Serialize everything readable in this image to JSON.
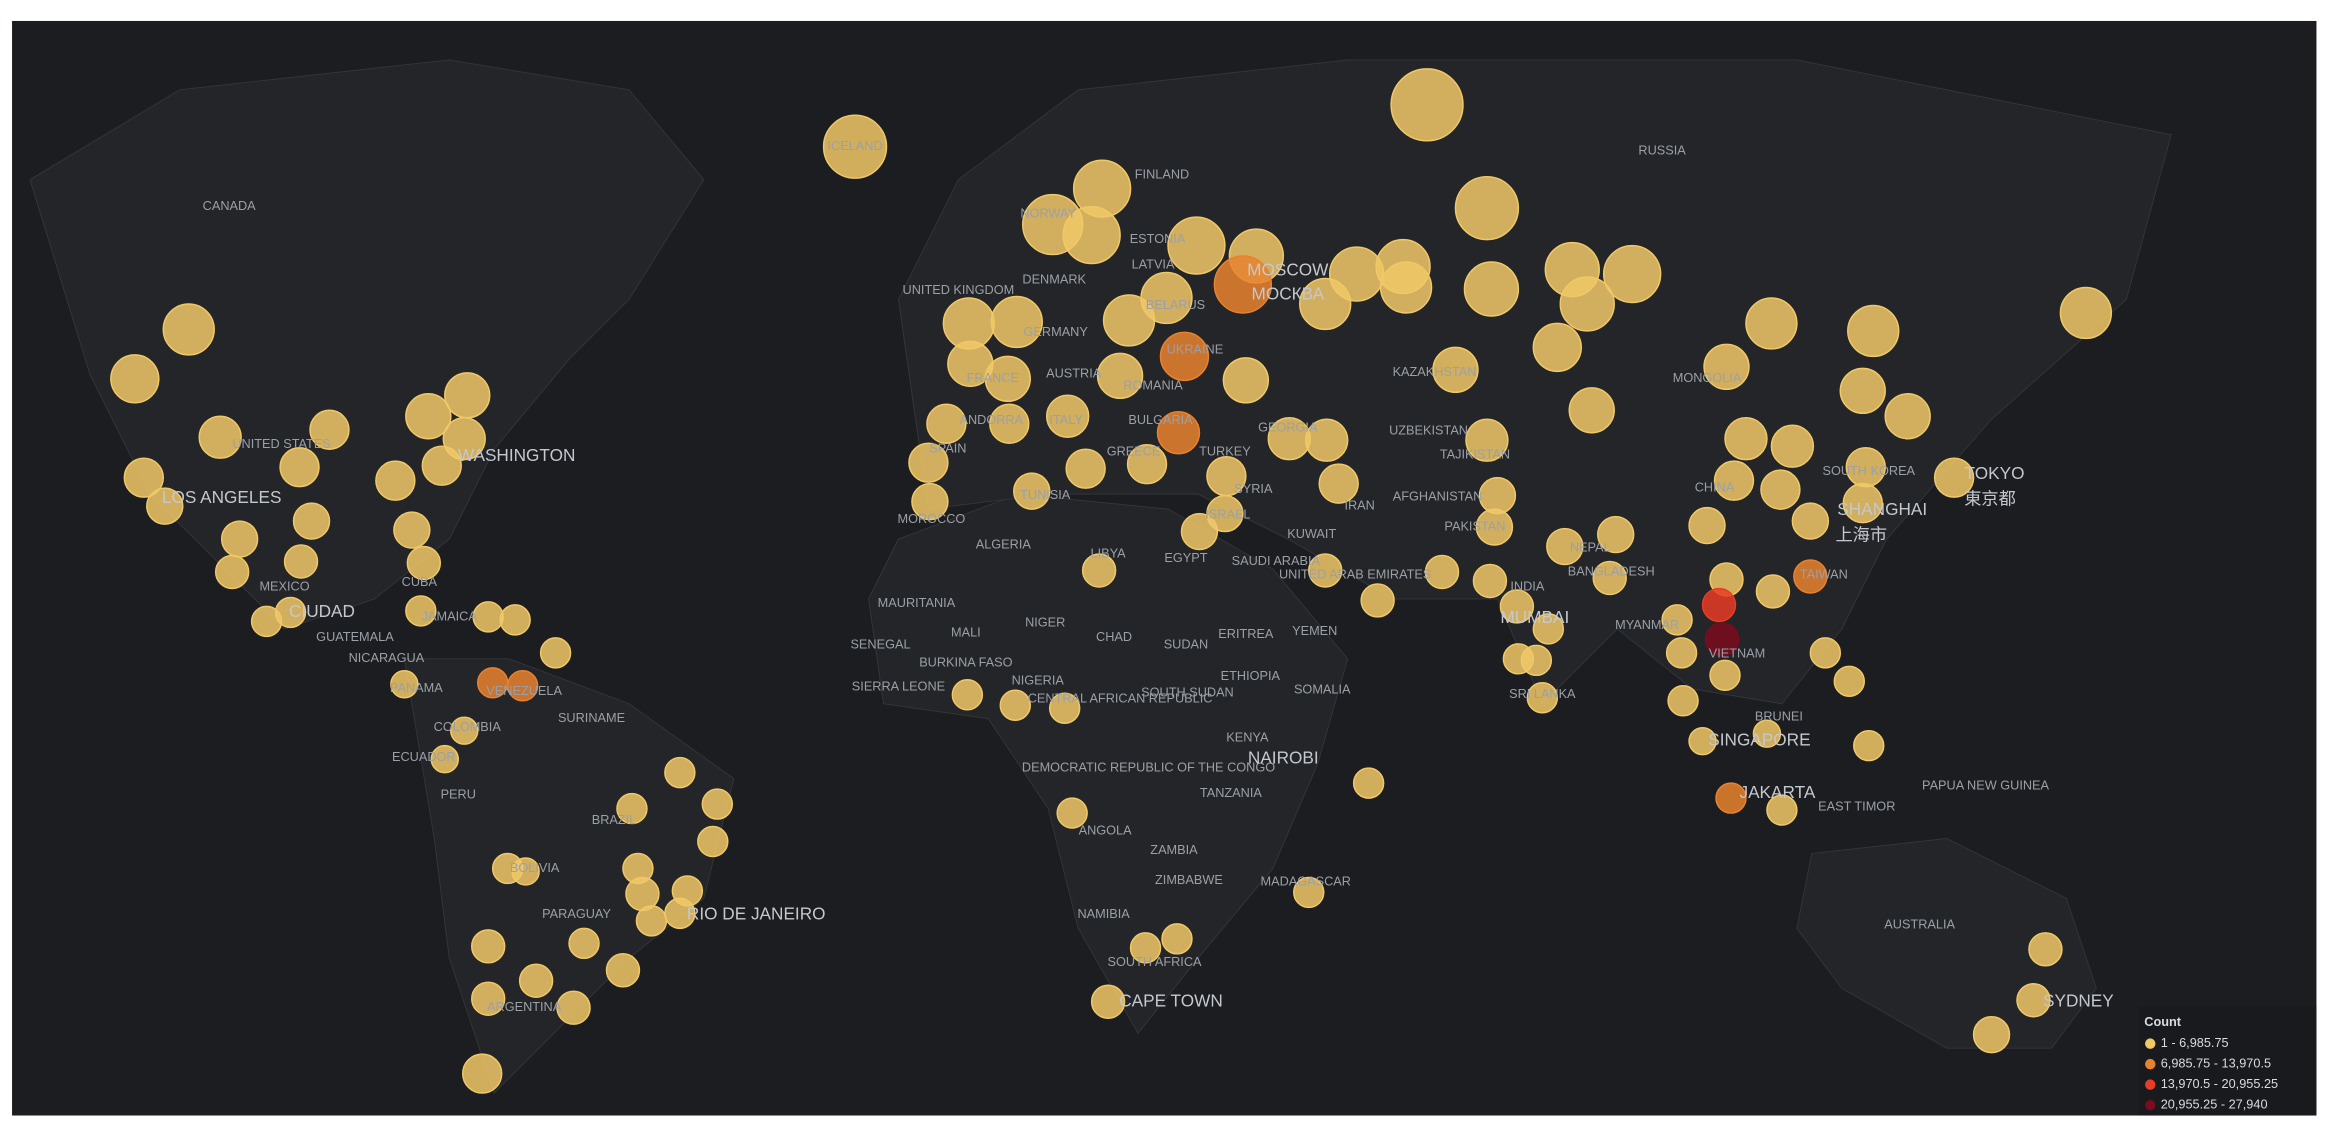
{
  "map": {
    "labels": [
      "CANADA",
      "RUSSIA",
      "ICELAND",
      "FINLAND",
      "NORWAY",
      "ESTONIA",
      "LATVIA",
      "DENMARK",
      "UNITED KINGDOM",
      "MOSCOW",
      "МОСКВА",
      "BELARUS",
      "GERMANY",
      "UKRAINE",
      "FRANCE",
      "AUSTRIA",
      "ROMANIA",
      "KAZAKHSTAN",
      "MONGOLIA",
      "ANDORRA",
      "ITALY",
      "BULGARIA",
      "GEORGIA",
      "UZBEKISTAN",
      "SPAIN",
      "GREECE",
      "TURKEY",
      "TAJIKISTAN",
      "UNITED STATES",
      "WASHINGTON",
      "LOS ANGELES",
      "TUNISIA",
      "SYRIA",
      "AFGHANISTAN",
      "CHINA",
      "SOUTH KOREA",
      "TOKYO",
      "東京都",
      "IRAN",
      "PAKISTAN",
      "SHANGHAI",
      "上海市",
      "MOROCCO",
      "ISRAEL",
      "KUWAIT",
      "NEPAL",
      "ALGERIA",
      "LIBYA",
      "EGYPT",
      "SAUDI ARABIA",
      "UNITED ARAB EMIRATES",
      "BANGLADESH",
      "TAIWAN",
      "MEXICO",
      "CUBA",
      "INDIA",
      "MAURITANIA",
      "CIUDAD",
      "JAMAICA",
      "MUMBAI",
      "MYANMAR",
      "NIGER",
      "MALI",
      "ERITREA",
      "YEMEN",
      "GUATEMALA",
      "CHAD",
      "SUDAN",
      "SENEGAL",
      "VIETNAM",
      "BURKINA FASO",
      "NICARAGUA",
      "ETHIOPIA",
      "NIGERIA",
      "SIERRA LEONE",
      "CENTRAL AFRICAN REPUBLIC",
      "SOUTH SUDAN",
      "PANAMA",
      "VENEZUELA",
      "SOMALIA",
      "SRI LANKA",
      "COLOMBIA",
      "SURINAME",
      "BRUNEI",
      "KENYA",
      "SINGAPORE",
      "ECUADOR",
      "DEMOCRATIC REPUBLIC OF THE CONGO",
      "NAIROBI",
      "PERU",
      "TANZANIA",
      "JAKARTA",
      "EAST TIMOR",
      "PAPUA NEW GUINEA",
      "BRAZIL",
      "ANGOLA",
      "ZAMBIA",
      "BOLIVIA",
      "ZIMBABWE",
      "MADAGASCAR",
      "PARAGUAY",
      "RIO DE JANEIRO",
      "NAMIBIA",
      "AUSTRALIA",
      "SOUTH AFRICA",
      "CAPE TOWN",
      "ARGENTINA",
      "SYDNEY"
    ],
    "legend": {
      "title": "Count",
      "items": [
        {
          "label": "1 - 6,985.75",
          "color": "#f0c867"
        },
        {
          "label": "6,985.75 - 13,970.5",
          "color": "#e8822e"
        },
        {
          "label": "13,970.5 - 20,955.25",
          "color": "#e83c24"
        },
        {
          "label": "20,955.25 - 27,940",
          "color": "#7a0c1c"
        }
      ]
    }
  }
}
